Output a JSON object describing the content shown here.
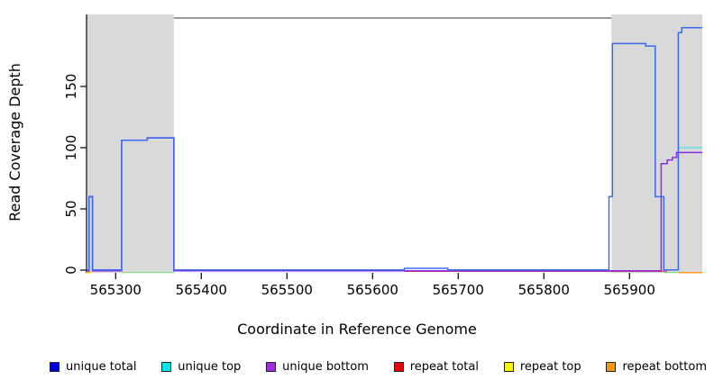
{
  "chart_data": {
    "type": "line",
    "title": "",
    "xlabel": "Coordinate in Reference Genome",
    "ylabel": "Read Coverage Depth",
    "xlim": [
      565266,
      565985
    ],
    "ylim": [
      0,
      206
    ],
    "xticks": [
      565300,
      565400,
      565500,
      565600,
      565700,
      565800,
      565900
    ],
    "yticks": [
      0,
      50,
      100,
      150
    ],
    "grid": false,
    "legend_position": "bottom",
    "background_color": "#ffffff",
    "shaded_region_color": "#d9d9d9",
    "top_border_color": "#777777",
    "shaded_regions": [
      {
        "x0": 565267,
        "x1": 565368
      },
      {
        "x0": 565879,
        "x1": 565985
      }
    ],
    "series": [
      {
        "name": "repeat top",
        "color": "#f2f20a",
        "width": 1.2,
        "segments": [
          [
            [
              565266,
              -2.2
            ],
            [
              565271,
              -2.2
            ]
          ]
        ]
      },
      {
        "name": "repeat bottom",
        "color": "#ff9612",
        "width": 1.4,
        "segments": [
          [
            [
              565266,
              -1.4
            ],
            [
              565271,
              -1.4
            ]
          ],
          [
            [
              565957,
              -2.0
            ],
            [
              565985,
              -2.0
            ]
          ]
        ]
      },
      {
        "name": "unlabeled green",
        "color": "#7ed87e",
        "width": 1.2,
        "segments": [
          [
            [
              565307,
              -2.0
            ],
            [
              565368,
              -2.0
            ]
          ],
          [
            [
              565940,
              -2.0
            ],
            [
              565957,
              -2.0
            ]
          ]
        ]
      },
      {
        "name": "repeat total",
        "color": "#e84b5a",
        "width": 1.2,
        "segments": [
          [
            [
              565637,
              -1.0
            ],
            [
              565944,
              -1.0
            ]
          ]
        ]
      },
      {
        "name": "unique top",
        "color": "#52e6e6",
        "width": 1.3,
        "segments": [
          [
            [
              565957,
              0
            ],
            [
              565957,
              100
            ],
            [
              565985,
              100
            ]
          ]
        ]
      },
      {
        "name": "unique bottom",
        "color": "#8a2be2",
        "width": 1.5,
        "segments": [
          [
            [
              565266,
              -0.6
            ],
            [
              565269,
              -0.6
            ],
            [
              565269,
              60
            ],
            [
              565273,
              60
            ],
            [
              565273,
              -0.6
            ],
            [
              565307,
              -0.6
            ],
            [
              565307,
              106
            ],
            [
              565337,
              106
            ],
            [
              565337,
              108
            ],
            [
              565368,
              108
            ],
            [
              565368,
              -0.6
            ],
            [
              565937,
              -0.6
            ],
            [
              565937,
              87
            ],
            [
              565944,
              87
            ],
            [
              565944,
              90
            ],
            [
              565950,
              90
            ],
            [
              565950,
              92
            ],
            [
              565955,
              92
            ],
            [
              565955,
              96
            ],
            [
              565985,
              96
            ]
          ]
        ]
      },
      {
        "name": "unique total",
        "color": "#3a6af0",
        "width": 1.5,
        "segments": [
          [
            [
              565266,
              0.2
            ],
            [
              565269,
              0.2
            ],
            [
              565269,
              60
            ],
            [
              565273,
              60
            ],
            [
              565273,
              0.2
            ],
            [
              565307,
              0.2
            ],
            [
              565307,
              106
            ],
            [
              565337,
              106
            ],
            [
              565337,
              108
            ],
            [
              565368,
              108
            ],
            [
              565368,
              0.2
            ],
            [
              565637,
              0.2
            ],
            [
              565637,
              1.5
            ],
            [
              565688,
              1.5
            ],
            [
              565688,
              0.2
            ],
            [
              565876,
              0.2
            ],
            [
              565876,
              60
            ],
            [
              565880,
              60
            ],
            [
              565880,
              185
            ],
            [
              565919,
              185
            ],
            [
              565919,
              183
            ],
            [
              565930,
              183
            ],
            [
              565930,
              60
            ],
            [
              565940,
              60
            ],
            [
              565940,
              0.2
            ],
            [
              565957,
              0.2
            ],
            [
              565957,
              194
            ],
            [
              565961,
              194
            ],
            [
              565961,
              198
            ],
            [
              565985,
              198
            ]
          ]
        ]
      }
    ]
  },
  "legend": {
    "items": [
      {
        "label": "unique total",
        "color": "#0000dd"
      },
      {
        "label": "unique top",
        "color": "#00e5e5"
      },
      {
        "label": "unique bottom",
        "color": "#9b30d9"
      },
      {
        "label": "repeat total",
        "color": "#e8000d"
      },
      {
        "label": "repeat top",
        "color": "#f5f500"
      },
      {
        "label": "repeat bottom",
        "color": "#ff9612"
      }
    ]
  }
}
